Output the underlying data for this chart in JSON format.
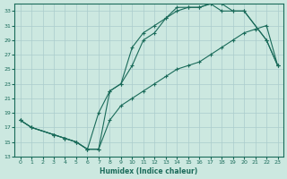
{
  "xlabel": "Humidex (Indice chaleur)",
  "bg_color": "#cce8e0",
  "line_color": "#1a6b5a",
  "grid_color": "#aacccc",
  "xlim": [
    -0.5,
    23.5
  ],
  "ylim": [
    13,
    34
  ],
  "xticks": [
    0,
    1,
    2,
    3,
    4,
    5,
    6,
    7,
    8,
    9,
    10,
    11,
    12,
    13,
    14,
    15,
    16,
    17,
    18,
    19,
    20,
    21,
    22,
    23
  ],
  "yticks": [
    13,
    15,
    17,
    19,
    21,
    23,
    25,
    27,
    29,
    31,
    33
  ],
  "line1_x": [
    0,
    1,
    3,
    4,
    5,
    6,
    7,
    8,
    9,
    10,
    11,
    12,
    13,
    14,
    15,
    16,
    17,
    18,
    19,
    20,
    22,
    23
  ],
  "line1_y": [
    18,
    17,
    16,
    15.5,
    15,
    14,
    19,
    22,
    23,
    28,
    30,
    31,
    32,
    33.5,
    33.5,
    33.5,
    34,
    33,
    33,
    33,
    29,
    25.5
  ],
  "line2_x": [
    0,
    1,
    3,
    4,
    5,
    6,
    7,
    8,
    9,
    10,
    11,
    12,
    13,
    14,
    15,
    16,
    17,
    18,
    19,
    20,
    22,
    23
  ],
  "line2_y": [
    18,
    17,
    16,
    15.5,
    15,
    14,
    14,
    22,
    23,
    25.5,
    29,
    30,
    32,
    33,
    33.5,
    33.5,
    34,
    34,
    33,
    33,
    29,
    25.5
  ],
  "line3_x": [
    0,
    1,
    3,
    4,
    5,
    6,
    7,
    8,
    9,
    10,
    11,
    12,
    13,
    14,
    15,
    16,
    17,
    18,
    19,
    20,
    21,
    22,
    23
  ],
  "line3_y": [
    18,
    17,
    16,
    15.5,
    15,
    14,
    14,
    18,
    20,
    21,
    22,
    23,
    24,
    25,
    25.5,
    26,
    27,
    28,
    29,
    30,
    30.5,
    31,
    25.5
  ]
}
